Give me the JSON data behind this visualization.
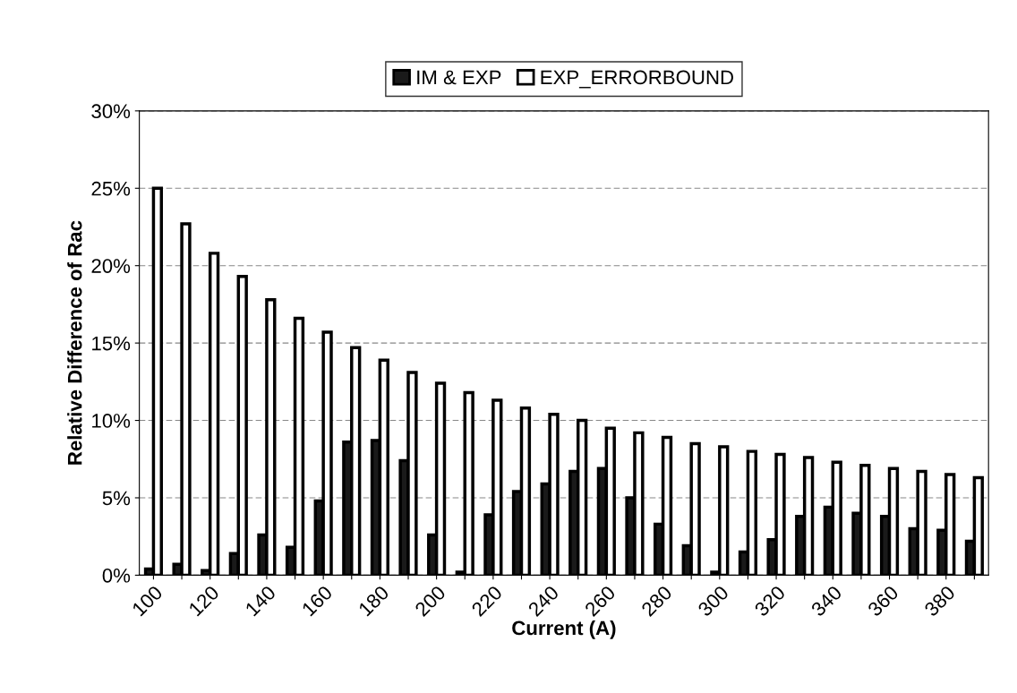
{
  "chart_data": {
    "type": "bar",
    "xlabel": "Current (A)",
    "ylabel": "Relative Difference of Rac",
    "categories": [
      "100",
      null,
      "120",
      null,
      "140",
      null,
      "160",
      null,
      "180",
      null,
      "200",
      null,
      "220",
      null,
      "240",
      null,
      "260",
      null,
      "280",
      null,
      "300",
      null,
      "320",
      null,
      "340",
      null,
      "360",
      null,
      "380",
      null
    ],
    "series": [
      {
        "name": "IM & EXP",
        "color": "#1a1a1a",
        "values": [
          0.4,
          0.7,
          0.3,
          1.4,
          2.6,
          1.8,
          4.8,
          8.6,
          8.7,
          7.4,
          2.6,
          0.2,
          3.9,
          5.4,
          5.9,
          6.7,
          6.9,
          5.0,
          3.3,
          1.9,
          0.2,
          1.5,
          2.3,
          3.8,
          4.4,
          4.0,
          3.8,
          3.0,
          2.9,
          2.2
        ]
      },
      {
        "name": "EXP_ERRORBOUND",
        "color": "#ffffff",
        "values": [
          25.0,
          22.7,
          20.8,
          19.3,
          17.8,
          16.6,
          15.7,
          14.7,
          13.9,
          13.1,
          12.4,
          11.8,
          11.3,
          10.8,
          10.4,
          10.0,
          9.5,
          9.2,
          8.9,
          8.5,
          8.3,
          8.0,
          7.8,
          7.6,
          7.3,
          7.1,
          6.9,
          6.7,
          6.5,
          6.3
        ]
      }
    ],
    "ylim": [
      0,
      30
    ],
    "yticks": [
      {
        "value": 0,
        "label": "0%"
      },
      {
        "value": 5,
        "label": "5%"
      },
      {
        "value": 10,
        "label": "10%"
      },
      {
        "value": 15,
        "label": "15%"
      },
      {
        "value": 20,
        "label": "20%"
      },
      {
        "value": 25,
        "label": "25%"
      },
      {
        "value": 30,
        "label": "30%"
      }
    ],
    "grid": "y",
    "legend": "top"
  }
}
